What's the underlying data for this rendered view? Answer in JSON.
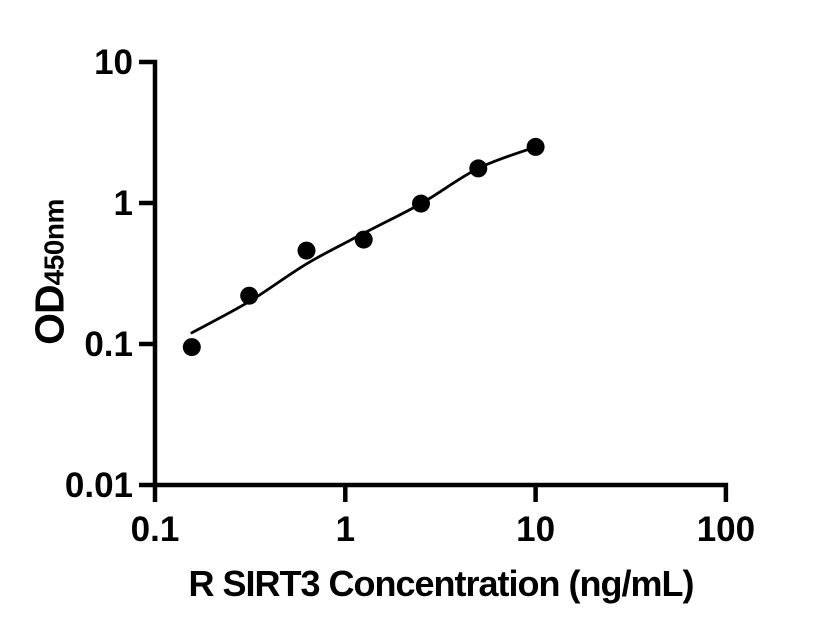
{
  "figure": {
    "background": "#ffffff"
  },
  "chart_data": {
    "type": "scatter",
    "title": "",
    "xlabel": "R SIRT3 Concentration (ng/mL)",
    "ylabel_main": "OD",
    "ylabel_sub": "450nm",
    "x_scale": "log",
    "y_scale": "log",
    "xlim": [
      0.1,
      100
    ],
    "ylim": [
      0.01,
      10
    ],
    "x_ticks": [
      {
        "value": 0.1,
        "label": "0.1"
      },
      {
        "value": 1,
        "label": "1"
      },
      {
        "value": 10,
        "label": "10"
      },
      {
        "value": 100,
        "label": "100"
      }
    ],
    "y_ticks": [
      {
        "value": 0.01,
        "label": "0.01"
      },
      {
        "value": 0.1,
        "label": "0.1"
      },
      {
        "value": 1,
        "label": "1"
      },
      {
        "value": 10,
        "label": "10"
      }
    ],
    "grid": false,
    "legend": false,
    "series": [
      {
        "name": "standard-points",
        "marker": "circle",
        "color": "#000000",
        "x": [
          0.156,
          0.3125,
          0.625,
          1.25,
          2.5,
          5,
          10
        ],
        "y": [
          0.095,
          0.22,
          0.46,
          0.55,
          0.99,
          1.76,
          2.5
        ]
      }
    ],
    "fit_line": {
      "name": "fit-curve",
      "color": "#000000",
      "points": [
        [
          0.156,
          0.12
        ],
        [
          0.3125,
          0.2
        ],
        [
          0.625,
          0.37
        ],
        [
          1.25,
          0.61
        ],
        [
          2.5,
          0.99
        ],
        [
          5,
          1.76
        ],
        [
          10,
          2.5
        ]
      ]
    },
    "axis_color": "#000000",
    "background": "#ffffff"
  }
}
